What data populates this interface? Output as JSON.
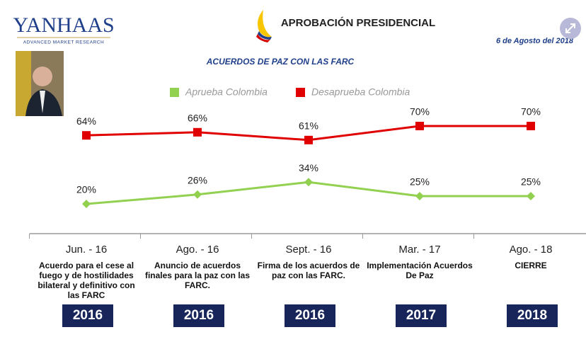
{
  "logo": {
    "name": "YANHAAS",
    "tagline": "ADVANCED MARKET RESEARCH"
  },
  "header": {
    "title": "APROBACIÓN PRESIDENCIAL",
    "date": "6 de Agosto del 2018"
  },
  "chart_data": {
    "type": "line",
    "title": "ACUERDOS DE PAZ CON LAS FARC",
    "categories": [
      "Jun. - 16",
      "Ago. - 16",
      "Sept. - 16",
      "Mar. - 17",
      "Ago. - 18"
    ],
    "descriptions": [
      "Acuerdo para el cese al fuego y de hostilidades bilateral y definitivo con las FARC",
      "Anuncio de acuerdos finales para la paz con las FARC.",
      "Firma de los acuerdos de paz con las FARC.",
      "Implementación Acuerdos De Paz",
      "CIERRE"
    ],
    "years": [
      "2016",
      "2016",
      "2016",
      "2017",
      "2018"
    ],
    "series": [
      {
        "name": "Aprueba Colombia",
        "color": "#92d050",
        "values": [
          20,
          26,
          34,
          25,
          25
        ],
        "value_labels": [
          "20%",
          "26%",
          "34%",
          "25%",
          "25%"
        ]
      },
      {
        "name": "Desaprueba Colombia",
        "color": "#e00000",
        "values": [
          64,
          66,
          61,
          70,
          70
        ],
        "value_labels": [
          "64%",
          "66%",
          "61%",
          "70%",
          "70%"
        ]
      }
    ]
  }
}
